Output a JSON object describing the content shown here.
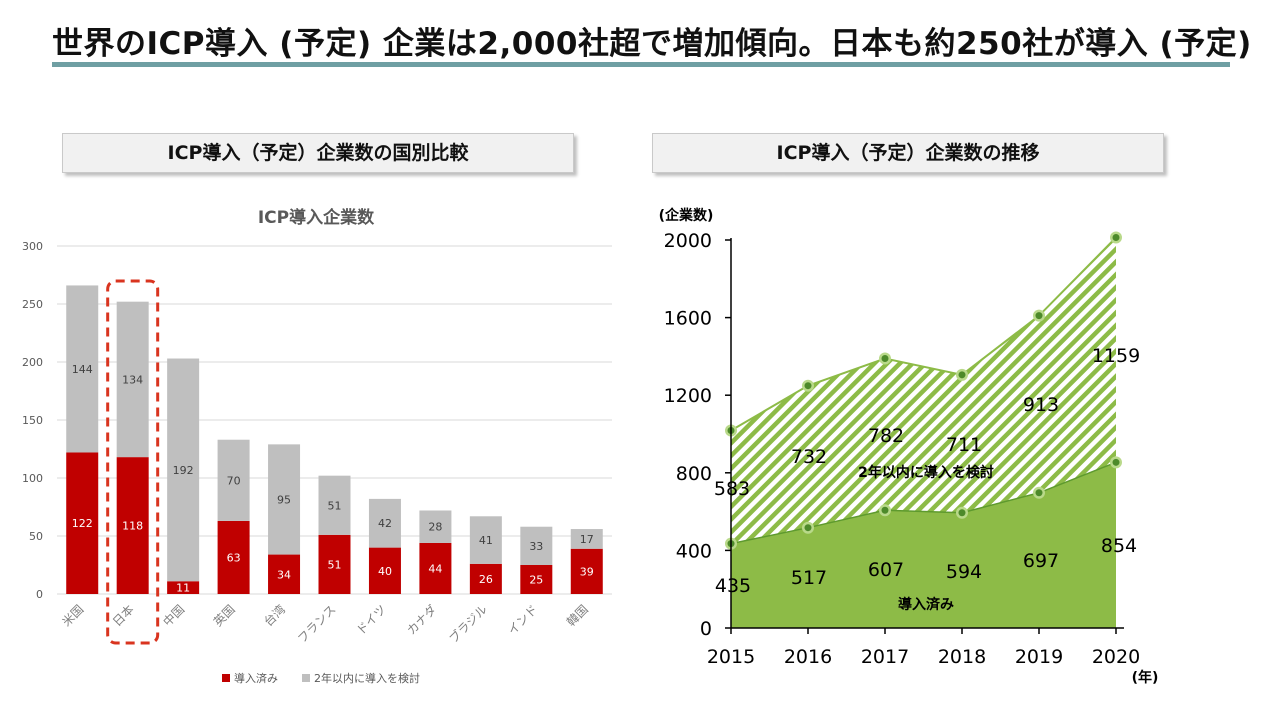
{
  "page": {
    "title": "世界のICP導入 (予定) 企業は2,000社超で増加傾向。日本も約250社が導入 (予定)",
    "left_panel_title": "ICP導入（予定）企業数の国別比較",
    "right_panel_title": "ICP導入（予定）企業数の推移"
  },
  "colors": {
    "title_rule": "#6f9fa3",
    "adopted_bar": "#c00000",
    "planned_bar": "#bfbfbf",
    "highlight_box": "#d9341f",
    "area_adopted": "#8dbb47",
    "area_planned_hatch": "#8dbb47",
    "marker_fill": "#4d8a2a",
    "marker_halo": "#b9d98a"
  },
  "chart_data": [
    {
      "type": "bar",
      "stacked": true,
      "title": "ICP導入企業数",
      "categories": [
        "米国",
        "日本",
        "中国",
        "英国",
        "台湾",
        "フランス",
        "ドイツ",
        "カナダ",
        "ブラジル",
        "インド",
        "韓国"
      ],
      "series": [
        {
          "name": "導入済み",
          "values": [
            122,
            118,
            11,
            63,
            34,
            51,
            40,
            44,
            26,
            25,
            39
          ]
        },
        {
          "name": "2年以内に導入を検討",
          "values": [
            144,
            134,
            192,
            70,
            95,
            51,
            42,
            28,
            41,
            33,
            17
          ]
        }
      ],
      "yticks": [
        0,
        50,
        100,
        150,
        200,
        250,
        300
      ],
      "ylim": [
        0,
        300
      ],
      "highlight_category": "日本",
      "legend": "bottom",
      "grid": true
    },
    {
      "type": "area",
      "stacked": true,
      "x": [
        "2015",
        "2016",
        "2017",
        "2018",
        "2019",
        "2020"
      ],
      "xlabel": "(年)",
      "ylabel": "(企業数)",
      "yticks": [
        0,
        400,
        800,
        1200,
        1600,
        2000
      ],
      "ylim": [
        0,
        2000
      ],
      "series": [
        {
          "name": "導入済み",
          "values": [
            435,
            517,
            607,
            594,
            697,
            854
          ]
        },
        {
          "name": "2年以内に導入を検討",
          "values": [
            583,
            732,
            782,
            711,
            913,
            1159
          ]
        }
      ],
      "grid": false
    }
  ]
}
